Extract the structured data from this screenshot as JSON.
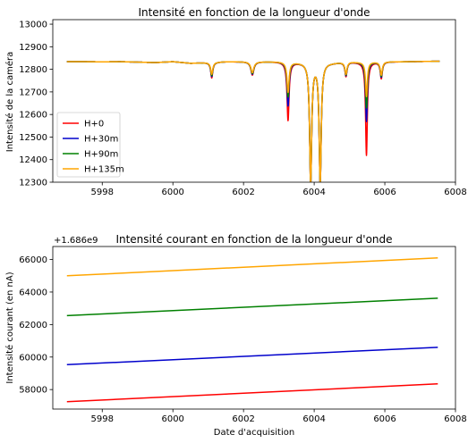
{
  "chart_data": [
    {
      "type": "line",
      "title": "Intensité en fonction de la longueur d'onde",
      "xlabel": "",
      "ylabel": "Intensité de la caméra",
      "xlim": [
        5996.6,
        6008.0
      ],
      "ylim": [
        12300,
        13020
      ],
      "xticks": [
        5998,
        6000,
        6002,
        6004,
        6006,
        6008
      ],
      "yticks": [
        12300,
        12400,
        12500,
        12600,
        12700,
        12800,
        12900,
        13000
      ],
      "grid": false,
      "legend": "lower-left",
      "baseline": [
        [
          5997.0,
          12834
        ],
        [
          5997.5,
          12834
        ],
        [
          5998.0,
          12833
        ],
        [
          5998.5,
          12834
        ],
        [
          5999.0,
          12832
        ],
        [
          5999.5,
          12830
        ],
        [
          6000.0,
          12834
        ],
        [
          6000.5,
          12827
        ],
        [
          6001.0,
          12830
        ],
        [
          6001.5,
          12834
        ],
        [
          6002.0,
          12834
        ],
        [
          6003.0,
          12834
        ],
        [
          6003.6,
          12832
        ],
        [
          6004.0,
          12834
        ],
        [
          6004.5,
          12830
        ],
        [
          6005.0,
          12834
        ],
        [
          6005.3,
          12832
        ],
        [
          6006.0,
          12834
        ],
        [
          6006.5,
          12834
        ],
        [
          6007.0,
          12835
        ],
        [
          6007.55,
          12836
        ]
      ],
      "dips": [
        {
          "center": 6001.1,
          "width": 0.035,
          "depths": [
            12762,
            12768,
            12772,
            12778
          ]
        },
        {
          "center": 6002.25,
          "width": 0.05,
          "depths": [
            12775,
            12779,
            12782,
            12786
          ]
        },
        {
          "center": 6003.26,
          "width": 0.035,
          "depths": [
            12575,
            12640,
            12680,
            12700
          ]
        },
        {
          "center": 6003.9,
          "width": 0.035,
          "depths": [
            12300,
            12300,
            12300,
            12300
          ]
        },
        {
          "center": 6004.17,
          "width": 0.035,
          "depths": [
            12300,
            12300,
            12300,
            12300
          ]
        },
        {
          "center": 6004.9,
          "width": 0.035,
          "depths": [
            12770,
            12774,
            12777,
            12780
          ]
        },
        {
          "center": 6005.48,
          "width": 0.03,
          "depths": [
            12420,
            12570,
            12630,
            12680
          ]
        },
        {
          "center": 6005.9,
          "width": 0.035,
          "depths": [
            12760,
            12766,
            12770,
            12775
          ]
        }
      ],
      "series": [
        {
          "name": "H+0",
          "color": "#ff0000"
        },
        {
          "name": "H+30m",
          "color": "#0000cc"
        },
        {
          "name": "H+90m",
          "color": "#008000"
        },
        {
          "name": "H+135m",
          "color": "#ffa500"
        }
      ]
    },
    {
      "type": "line",
      "title": "Intensité courant en fonction de la longueur d'onde",
      "xlabel": "Date d'acquisition",
      "ylabel": "Intensité courant (en nA)",
      "offset_text": "+1.686e9",
      "xlim": [
        5996.6,
        6008.0
      ],
      "ylim": [
        56800,
        66800
      ],
      "xticks": [
        5998,
        6000,
        6002,
        6004,
        6006,
        6008
      ],
      "yticks": [
        58000,
        60000,
        62000,
        64000,
        66000
      ],
      "grid": false,
      "series": [
        {
          "name": "H+0",
          "color": "#ff0000",
          "x": [
            5997.0,
            6007.5
          ],
          "y": [
            57250,
            58350
          ]
        },
        {
          "name": "H+30m",
          "color": "#0000cc",
          "x": [
            5997.0,
            6007.5
          ],
          "y": [
            59530,
            60600
          ]
        },
        {
          "name": "H+90m",
          "color": "#008000",
          "x": [
            5997.0,
            6007.5
          ],
          "y": [
            62550,
            63620
          ]
        },
        {
          "name": "H+135m",
          "color": "#ffa500",
          "x": [
            5997.0,
            6007.5
          ],
          "y": [
            65000,
            66100
          ]
        }
      ]
    }
  ]
}
